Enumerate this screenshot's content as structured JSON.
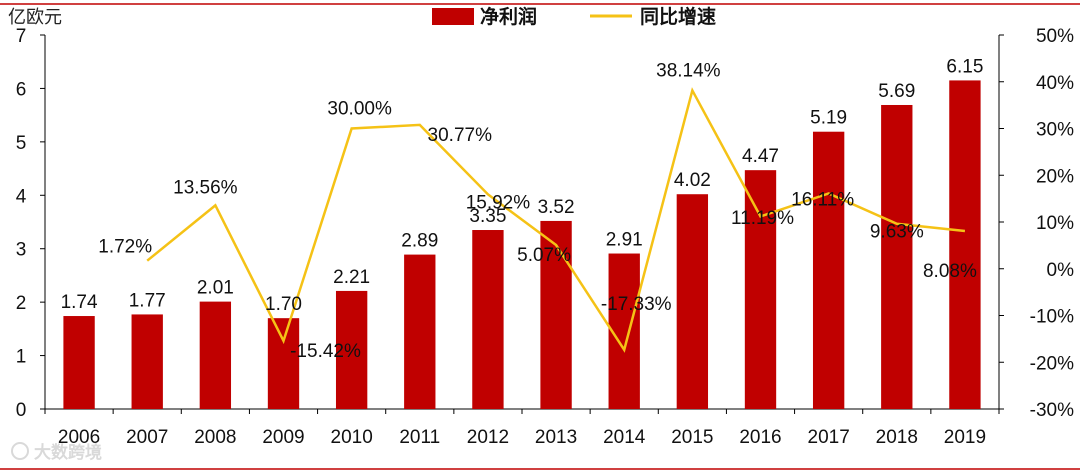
{
  "watermark": "大数跨境",
  "chart_data": {
    "type": "bar+line",
    "title": "",
    "categories": [
      "2006",
      "2007",
      "2008",
      "2009",
      "2010",
      "2011",
      "2012",
      "2013",
      "2014",
      "2015",
      "2016",
      "2017",
      "2018",
      "2019"
    ],
    "series": [
      {
        "name": "净利润",
        "type": "bar",
        "axis": "left",
        "color": "#c00000",
        "values": [
          1.74,
          1.77,
          2.01,
          1.7,
          2.21,
          2.89,
          3.35,
          3.52,
          2.91,
          4.02,
          4.47,
          5.19,
          5.69,
          6.15
        ],
        "labels": [
          "1.74",
          "1.77",
          "2.01",
          "1.70",
          "2.21",
          "2.89",
          "3.35",
          "3.52",
          "2.91",
          "4.02",
          "4.47",
          "5.19",
          "5.69",
          "6.15"
        ]
      },
      {
        "name": "同比增速",
        "type": "line",
        "axis": "right",
        "color": "#f5c216",
        "values": [
          null,
          1.72,
          13.56,
          -15.42,
          30.0,
          30.77,
          15.92,
          5.07,
          -17.33,
          38.14,
          11.19,
          16.11,
          9.63,
          8.08
        ],
        "labels": [
          "",
          "1.72%",
          "13.56%",
          "-15.42%",
          "30.00%",
          "30.77%",
          "15.92%",
          "5.07%",
          "-17.33%",
          "38.14%",
          "11.19%",
          "16.11%",
          "9.63%",
          "8.08%"
        ]
      }
    ],
    "left_axis": {
      "label": "亿欧元",
      "ylim": [
        0,
        7
      ],
      "ticks": [
        "0",
        "1",
        "2",
        "3",
        "4",
        "5",
        "6",
        "7"
      ]
    },
    "right_axis": {
      "ylim": [
        -30,
        50
      ],
      "ticks": [
        "-30%",
        "-20%",
        "-10%",
        "0%",
        "10%",
        "20%",
        "30%",
        "40%",
        "50%"
      ]
    },
    "legend": {
      "position": "top-center"
    }
  }
}
